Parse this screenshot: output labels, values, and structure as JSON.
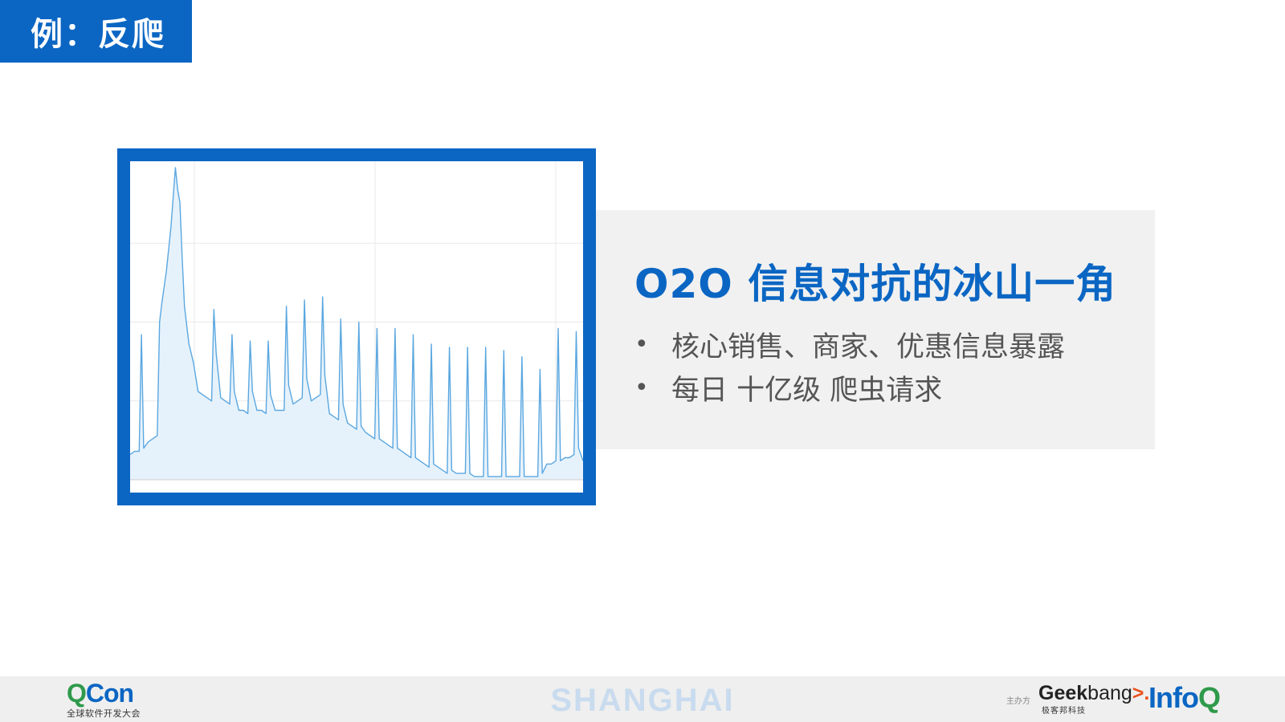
{
  "slide": {
    "title": "例：反爬"
  },
  "info": {
    "headline": "O2O 信息对抗的冰山一角",
    "bullet_glyph": "•",
    "bullets": [
      "核心销售、商家、优惠信息暴露",
      "每日 十亿级 爬虫请求"
    ]
  },
  "chart_data": {
    "type": "area",
    "title": "",
    "xlabel": "",
    "ylabel": "",
    "grid": true,
    "legend": "none",
    "xlim": [
      0,
      100
    ],
    "ylim": [
      0,
      100
    ],
    "colors": {
      "line": "#5aa7e0",
      "fill": "#e6f2fb",
      "grid": "#e9e9e9"
    },
    "series": [
      {
        "x": [
          0,
          1,
          2,
          2.5,
          3,
          4,
          5,
          6,
          6.5,
          7,
          8,
          9,
          10,
          10.5,
          11,
          11.5,
          12,
          13,
          14,
          15,
          16,
          17,
          18,
          18.5,
          19,
          20,
          21,
          22,
          22.5,
          23,
          24,
          25,
          26,
          26.5,
          27,
          28,
          29,
          30,
          30.5,
          31,
          32,
          33,
          34,
          34.5,
          35,
          36,
          37,
          38,
          38.5,
          39,
          40,
          41,
          42,
          42.5,
          43,
          44,
          45,
          46,
          46.5,
          47,
          48,
          49,
          50,
          50.5,
          51,
          52,
          53,
          54,
          54.5,
          55,
          56,
          57,
          58,
          58.5,
          59,
          60,
          61,
          62,
          62.5,
          63,
          64,
          65,
          66,
          66.5,
          67,
          68,
          69,
          70,
          70.5,
          71,
          72,
          73,
          74,
          74.5,
          75,
          76,
          77,
          78,
          78.5,
          79,
          80,
          81,
          82,
          82.5,
          83,
          84,
          85,
          86,
          86.5,
          87,
          88,
          89,
          90,
          90.5,
          91,
          92,
          93,
          94,
          94.5,
          95,
          96,
          97,
          98,
          98.5,
          99,
          100
        ],
        "values": [
          8,
          9,
          9,
          46,
          10,
          12,
          13,
          14,
          50,
          56,
          66,
          80,
          99,
          92,
          88,
          70,
          55,
          43,
          37,
          28,
          27,
          26,
          25,
          54,
          40,
          26,
          25,
          24,
          46,
          28,
          22,
          22,
          21,
          44,
          28,
          22,
          22,
          21,
          44,
          27,
          22,
          22,
          22,
          55,
          30,
          24,
          25,
          26,
          57,
          32,
          25,
          26,
          27,
          58,
          33,
          21,
          20,
          19,
          51,
          24,
          18,
          17,
          16,
          50,
          17,
          15,
          14,
          13,
          48,
          13,
          12,
          11,
          10,
          48,
          10,
          9,
          8,
          7,
          46,
          7,
          6,
          5,
          4,
          43,
          5,
          4,
          3,
          2,
          42,
          3,
          2,
          2,
          2,
          42,
          2,
          1,
          1,
          1,
          42,
          1,
          1,
          1,
          1,
          41,
          1,
          1,
          1,
          1,
          39,
          1,
          1,
          1,
          1,
          35,
          2,
          5,
          5,
          6,
          48,
          6,
          7,
          7,
          8,
          47,
          10,
          6
        ]
      }
    ]
  },
  "footer": {
    "conference_logo": {
      "main_q": "Q",
      "main_rest": "Con",
      "subtitle": "全球软件开发大会"
    },
    "city": "SHANGHAI",
    "sponsor_label": "主办方",
    "geekbang": {
      "geek": "Geek",
      "bang": "bang",
      "chevron": ">.",
      "subtitle": "极客邦科技"
    },
    "infoq": {
      "info": "Info",
      "q": "Q"
    }
  }
}
